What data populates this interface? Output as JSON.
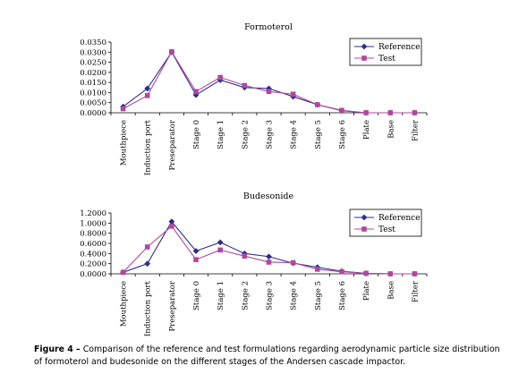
{
  "caption": {
    "lead": "Figure 4 –",
    "text": " Comparison of the reference and test formulations regarding aerodynamic particle size distribution of formoterol and budesonide on the different stages of the Andersen cascade impactor."
  },
  "colors": {
    "reference": "#2e2e8a",
    "test": "#b0489e"
  },
  "chart_data": [
    {
      "type": "line",
      "title": "Formoterol",
      "categories": [
        "Mouthpiece",
        "Induction port",
        "Preseparator",
        "Stage 0",
        "Stage 1",
        "Stage 2",
        "Stage 3",
        "Stage 4",
        "Stage 5",
        "Stage 6",
        "Plate",
        "Base",
        "Filter"
      ],
      "yticks": [
        "0.0000",
        "0.0050",
        "0.0100",
        "0.0150",
        "0.0200",
        "0.0250",
        "0.0300",
        "0.0350"
      ],
      "ylim": [
        0,
        0.035
      ],
      "legend_position": "top-right",
      "series": [
        {
          "name": "Reference",
          "marker": "diamond",
          "values": [
            0.003,
            0.012,
            0.03,
            0.0088,
            0.0162,
            0.0125,
            0.012,
            0.008,
            0.004,
            0.001,
            0.0,
            0.0,
            0.0
          ]
        },
        {
          "name": "Test",
          "marker": "square",
          "values": [
            0.002,
            0.0085,
            0.0302,
            0.0105,
            0.0175,
            0.0135,
            0.0105,
            0.0092,
            0.004,
            0.0012,
            0.0,
            0.0,
            0.0
          ]
        }
      ]
    },
    {
      "type": "line",
      "title": "Budesonide",
      "categories": [
        "Mouthpiece",
        "Induction port",
        "Preseparator",
        "Stage 0",
        "Stage 1",
        "Stage 2",
        "Stage 3",
        "Stage 4",
        "Stage 5",
        "Stage 6",
        "Plate",
        "Base",
        "Filter"
      ],
      "yticks": [
        "0.0000",
        "0.2000",
        "0.4000",
        "0.6000",
        "0.8000",
        "1.0000",
        "1.2000"
      ],
      "ylim": [
        0,
        1.2
      ],
      "legend_position": "top-right",
      "series": [
        {
          "name": "Reference",
          "marker": "diamond",
          "values": [
            0.03,
            0.2,
            1.03,
            0.45,
            0.62,
            0.4,
            0.34,
            0.21,
            0.13,
            0.05,
            0.01,
            0.0,
            0.0
          ]
        },
        {
          "name": "Test",
          "marker": "square",
          "values": [
            0.03,
            0.53,
            0.94,
            0.28,
            0.47,
            0.35,
            0.23,
            0.22,
            0.09,
            0.04,
            0.01,
            0.0,
            0.0
          ]
        }
      ]
    }
  ]
}
